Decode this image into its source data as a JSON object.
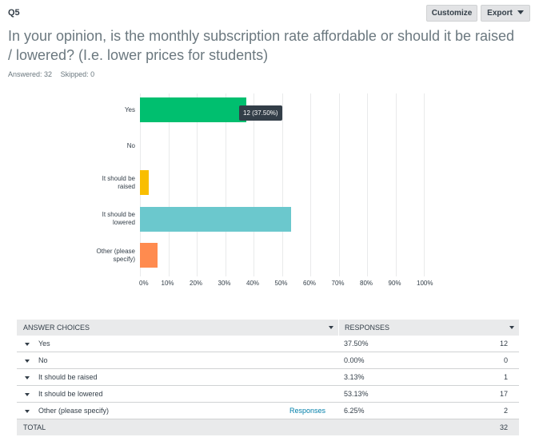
{
  "question": {
    "number": "Q5",
    "text": "In your opinion, is the monthly subscription rate affordable or should it be raised / lowered? (I.e. lower prices for students)",
    "answered": "Answered: 32",
    "skipped": "Skipped: 0"
  },
  "toolbar": {
    "customize_label": "Customize",
    "export_label": "Export"
  },
  "colors": {
    "green": "#00bf6f",
    "yellow": "#f9be00",
    "teal": "#6bc8cd",
    "orange": "#ff8b4f"
  },
  "chart_data": {
    "type": "bar",
    "orientation": "horizontal",
    "categories": [
      "Yes",
      "No",
      "It should be raised",
      "It should be lowered",
      "Other (please specify)"
    ],
    "category_labels": [
      [
        "Yes"
      ],
      [
        "No"
      ],
      [
        "It should be",
        "raised"
      ],
      [
        "It should be",
        "lowered"
      ],
      [
        "Other (please",
        "specify)"
      ]
    ],
    "values": [
      37.5,
      0,
      3.13,
      53.13,
      6.25
    ],
    "bar_colors": [
      "#00bf6f",
      "#00bf6f",
      "#f9be00",
      "#6bc8cd",
      "#ff8b4f"
    ],
    "xlim": [
      0,
      100
    ],
    "ticks": [
      "0%",
      "10%",
      "20%",
      "30%",
      "40%",
      "50%",
      "60%",
      "70%",
      "80%",
      "90%",
      "100%"
    ],
    "tooltip": "12 (37.50%)",
    "grid": true
  },
  "table": {
    "header_choice": "ANSWER CHOICES",
    "header_responses": "RESPONSES",
    "rows": [
      {
        "choice": "Yes",
        "pct": "37.50%",
        "count": "12",
        "link": ""
      },
      {
        "choice": "No",
        "pct": "0.00%",
        "count": "0",
        "link": ""
      },
      {
        "choice": "It should be raised",
        "pct": "3.13%",
        "count": "1",
        "link": ""
      },
      {
        "choice": "It should be lowered",
        "pct": "53.13%",
        "count": "17",
        "link": ""
      },
      {
        "choice": "Other (please specify)",
        "pct": "6.25%",
        "count": "2",
        "link": "Responses"
      }
    ],
    "total_label": "TOTAL",
    "total_count": "32"
  }
}
